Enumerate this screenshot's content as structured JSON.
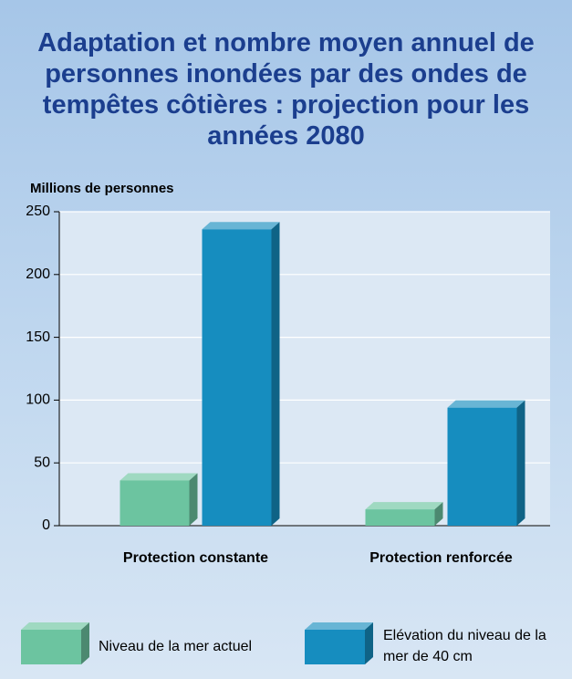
{
  "chart_data": {
    "type": "bar",
    "title": "Adaptation et nombre moyen annuel de personnes inondées par des ondes de tempêtes côtières : projection pour les années 2080",
    "y_label": "Millions de personnes",
    "categories": [
      "Protection constante",
      "Protection renforcée"
    ],
    "series": [
      {
        "name": "Niveau de la mer actuel",
        "color": "#6cc4a0",
        "values": [
          36,
          13
        ]
      },
      {
        "name": "Elévation du niveau de la mer de 40 cm",
        "color": "#168dbf",
        "values": [
          236,
          94
        ]
      }
    ],
    "ylim": [
      0,
      250
    ],
    "yticks": [
      0,
      50,
      100,
      150,
      200,
      250
    ],
    "grid": true
  }
}
